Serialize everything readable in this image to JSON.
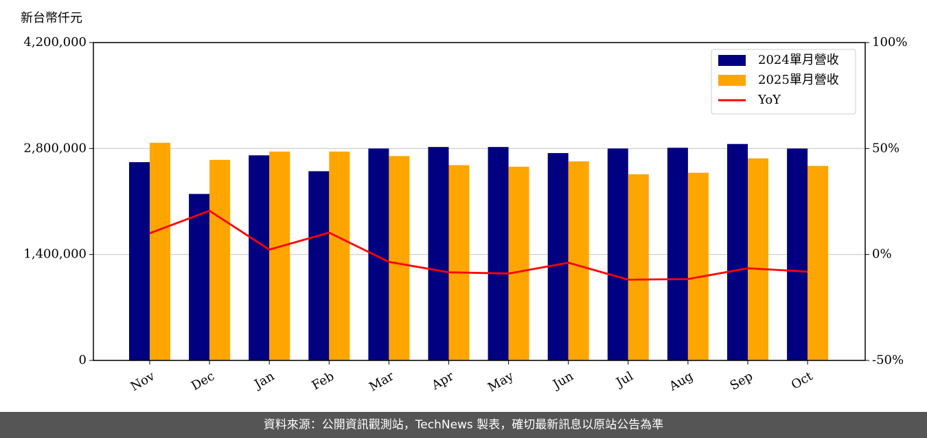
{
  "chart_data": {
    "type": "bar_line",
    "y_label": "新台幣仟元",
    "categories": [
      "Nov",
      "Dec",
      "Jan",
      "Feb",
      "Mar",
      "Apr",
      "May",
      "Jun",
      "Jul",
      "Aug",
      "Sep",
      "Oct"
    ],
    "series": [
      {
        "name": "2024單月營收",
        "color": "#000080",
        "type": "bar",
        "values": [
          2620000,
          2200000,
          2710000,
          2500000,
          2800000,
          2820000,
          2820000,
          2740000,
          2800000,
          2810000,
          2860000,
          2800000
        ]
      },
      {
        "name": "2025單月營收",
        "color": "#ffa500",
        "type": "bar",
        "values": [
          2875000,
          2650000,
          2760000,
          2760000,
          2700000,
          2580000,
          2560000,
          2630000,
          2460000,
          2480000,
          2670000,
          2570000
        ]
      },
      {
        "name": "YoY",
        "color": "#ff0000",
        "type": "line",
        "axis": "y2",
        "values": [
          10,
          20.6,
          2.3,
          10.3,
          -3.5,
          -8.4,
          -9,
          -3.9,
          -11.9,
          -11.6,
          -6.5,
          -8.1
        ]
      }
    ],
    "ylim": [
      0,
      4200000
    ],
    "yticks": [
      0,
      {
        "value": 1400000,
        "label": "1,400,000"
      },
      {
        "value": 2800000,
        "label": "2,800,000"
      },
      {
        "value": 4200000,
        "label": "4,200,000"
      }
    ],
    "y2lim": [
      -50,
      100
    ],
    "y2ticks": [
      {
        "value": -50,
        "label": "-50%"
      },
      {
        "value": 0,
        "label": "0%"
      },
      {
        "value": 50,
        "label": "50%"
      },
      {
        "value": 100,
        "label": "100%"
      }
    ],
    "grid": true,
    "legend": "upper right"
  },
  "footer": "資料來源：公開資訊觀測站，TechNews 製表，確切最新訊息以原站公告為準"
}
